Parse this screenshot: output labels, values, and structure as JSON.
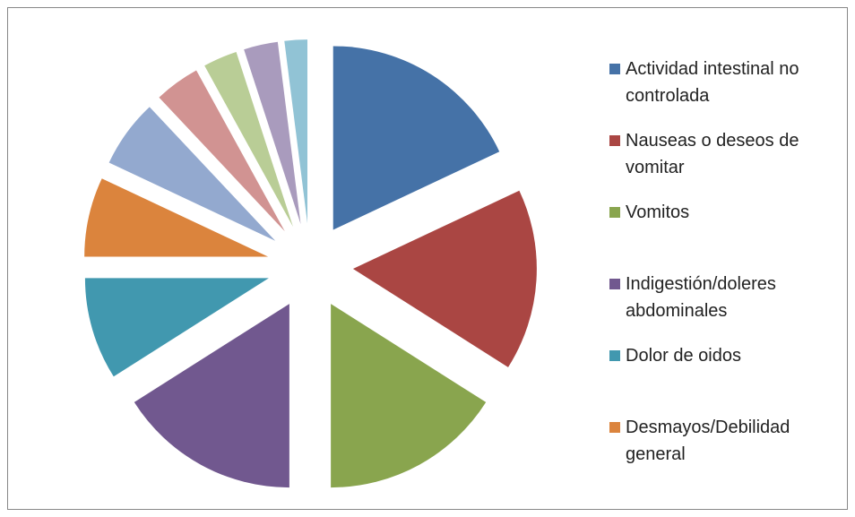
{
  "chart_data": {
    "type": "pie",
    "categories": [
      "Actividad intestinal no controlada",
      "Nauseas o deseos de vomitar",
      "Vomitos",
      "Indigestión/doleres abdominales",
      "Dolor de oidos",
      "Desmayos/Debilidad general",
      null,
      null,
      null,
      null,
      null
    ],
    "values": [
      18,
      16,
      16,
      16,
      9,
      7,
      6,
      4,
      3,
      3,
      2
    ],
    "colors": [
      "#4572A7",
      "#AA4643",
      "#89A54E",
      "#71588F",
      "#4198AF",
      "#DB843D",
      "#93A9CF",
      "#D19392",
      "#B9CD96",
      "#A99BBD",
      "#91C3D5"
    ],
    "exploded": true,
    "legend": "right"
  }
}
